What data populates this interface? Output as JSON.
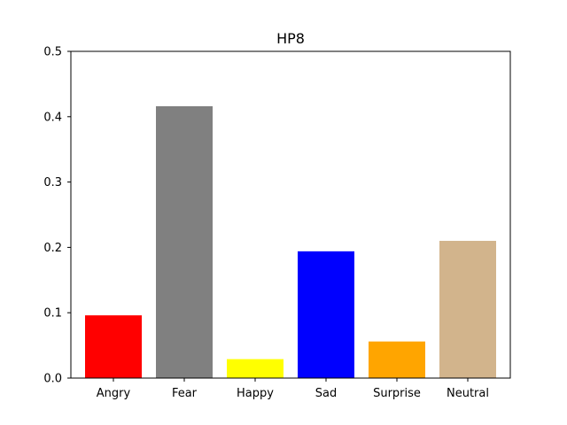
{
  "chart_data": {
    "type": "bar",
    "title": "HP8",
    "xlabel": "",
    "ylabel": "",
    "categories": [
      "Angry",
      "Fear",
      "Happy",
      "Sad",
      "Surprise",
      "Neutral"
    ],
    "values": [
      0.096,
      0.416,
      0.029,
      0.194,
      0.056,
      0.21
    ],
    "colors": [
      "#ff0000",
      "#808080",
      "#ffff00",
      "#0000ff",
      "#ffa500",
      "#d2b48c"
    ],
    "ylim": [
      0,
      0.5
    ],
    "yticks": [
      "0.0",
      "0.1",
      "0.2",
      "0.3",
      "0.4",
      "0.5"
    ],
    "grid": false,
    "legend": "none"
  }
}
